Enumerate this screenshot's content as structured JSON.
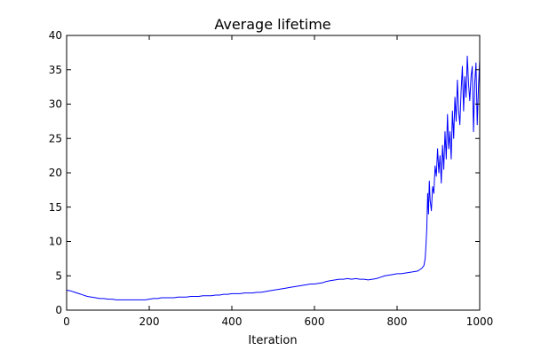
{
  "chart_data": {
    "type": "line",
    "title": "Average lifetime",
    "xlabel": "Iteration",
    "ylabel": "",
    "xlim": [
      0,
      1000
    ],
    "ylim": [
      0,
      40
    ],
    "xticks": [
      0,
      200,
      400,
      600,
      800,
      1000
    ],
    "yticks": [
      0,
      5,
      10,
      15,
      20,
      25,
      30,
      35,
      40
    ],
    "grid": false,
    "series": [
      {
        "color": "#0000ff",
        "x": [
          0,
          10,
          20,
          30,
          40,
          50,
          60,
          70,
          80,
          90,
          100,
          110,
          120,
          130,
          140,
          150,
          160,
          170,
          180,
          190,
          200,
          210,
          220,
          230,
          240,
          250,
          260,
          270,
          280,
          290,
          300,
          310,
          320,
          330,
          340,
          350,
          360,
          370,
          380,
          390,
          400,
          410,
          420,
          430,
          440,
          450,
          460,
          470,
          480,
          490,
          500,
          510,
          520,
          530,
          540,
          550,
          560,
          570,
          580,
          590,
          600,
          610,
          620,
          630,
          640,
          650,
          660,
          670,
          680,
          690,
          700,
          710,
          720,
          730,
          740,
          750,
          760,
          770,
          780,
          790,
          800,
          810,
          820,
          830,
          840,
          850,
          855,
          860,
          865,
          868,
          870,
          872,
          874,
          876,
          878,
          880,
          883,
          886,
          889,
          892,
          895,
          898,
          901,
          904,
          907,
          910,
          913,
          916,
          919,
          922,
          925,
          928,
          931,
          934,
          937,
          940,
          943,
          946,
          949,
          952,
          955,
          958,
          961,
          964,
          967,
          970,
          973,
          976,
          979,
          982,
          985,
          988,
          991,
          994,
          997,
          1000
        ],
        "y": [
          2.9,
          2.8,
          2.6,
          2.4,
          2.2,
          2.0,
          1.9,
          1.8,
          1.7,
          1.7,
          1.6,
          1.6,
          1.5,
          1.5,
          1.5,
          1.5,
          1.5,
          1.5,
          1.5,
          1.5,
          1.6,
          1.7,
          1.7,
          1.8,
          1.8,
          1.8,
          1.8,
          1.9,
          1.9,
          1.9,
          2.0,
          2.0,
          2.0,
          2.1,
          2.1,
          2.1,
          2.2,
          2.2,
          2.3,
          2.3,
          2.4,
          2.4,
          2.4,
          2.5,
          2.5,
          2.5,
          2.6,
          2.6,
          2.7,
          2.8,
          2.9,
          3.0,
          3.1,
          3.2,
          3.3,
          3.4,
          3.5,
          3.6,
          3.7,
          3.8,
          3.8,
          3.9,
          4.0,
          4.2,
          4.3,
          4.4,
          4.5,
          4.5,
          4.6,
          4.5,
          4.6,
          4.5,
          4.5,
          4.4,
          4.5,
          4.6,
          4.8,
          5.0,
          5.1,
          5.2,
          5.3,
          5.3,
          5.4,
          5.5,
          5.6,
          5.7,
          5.9,
          6.1,
          6.5,
          7.5,
          9.5,
          12.0,
          17.0,
          14.0,
          18.8,
          16.0,
          14.5,
          18.0,
          17.0,
          21.0,
          19.5,
          23.5,
          20.0,
          22.5,
          18.5,
          24.0,
          20.5,
          26.0,
          22.0,
          28.5,
          23.5,
          26.0,
          22.0,
          29.0,
          25.0,
          31.0,
          27.5,
          33.5,
          29.0,
          27.0,
          32.0,
          35.5,
          29.0,
          34.0,
          31.0,
          37.0,
          33.0,
          30.5,
          34.0,
          35.5,
          26.0,
          33.0,
          36.0,
          27.0,
          32.5,
          36.5
        ]
      }
    ]
  }
}
